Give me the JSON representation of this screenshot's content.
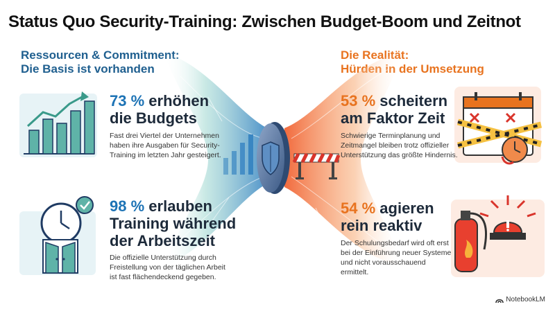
{
  "title": "Status Quo Security-Training: Zwischen Budget-Boom und Zeitnot",
  "left": {
    "heading_line1": "Ressourcen & Commitment:",
    "heading_line2": "Die Basis ist vorhanden",
    "stats": [
      {
        "number": "73 %",
        "rest_line1": "erhöhen",
        "line2": "die Budgets",
        "line3": "",
        "desc_lines": [
          "Fast drei Viertel der Unternehmen",
          "haben ihre Ausgaben für Security-",
          "Training im letzten Jahr gesteigert."
        ]
      },
      {
        "number": "98 %",
        "rest_line1": "erlauben",
        "line2": "Training während",
        "line3": "der Arbeitszeit",
        "desc_lines": [
          "Die offizielle Unterstützung durch",
          "Freistellung von der täglichen Arbeit",
          "ist fast flächendeckend gegeben."
        ]
      }
    ]
  },
  "right": {
    "heading_line1": "Die Realität:",
    "heading_line2": "Hürden in der Umsetzung",
    "stats": [
      {
        "number": "53 %",
        "rest_line1": "scheitern",
        "line2": "am Faktor Zeit",
        "desc_lines": [
          "Schwierige Terminplanung und",
          "Zeitmangel bleiben trotz offizieller",
          "Unterstützung das größte Hindernis."
        ]
      },
      {
        "number": "54 %",
        "rest_line1": "agieren",
        "line2": "rein reaktiv",
        "desc_lines": [
          "Der Schulungsbedarf wird oft erst",
          "bei der Einführung neuer Systeme",
          "und nicht vorausschauend",
          "ermittelt."
        ]
      }
    ]
  },
  "footer": {
    "brand": "NotebookLM",
    "icon": "notebooklm-logo-icon"
  },
  "icons": [
    "bar-chart-growth-icon",
    "clock-door-checkmark-icon",
    "shield-coin-icon",
    "barrier-icon",
    "calendar-barrier-clock-icon",
    "fire-extinguisher-alarm-icon"
  ],
  "colors": {
    "blue": "#1d73b5",
    "dark_blue": "#1f5f8f",
    "orange": "#e8731f",
    "red": "#d9342b",
    "teal": "#5fb3a8",
    "text": "#1d2a3a"
  }
}
